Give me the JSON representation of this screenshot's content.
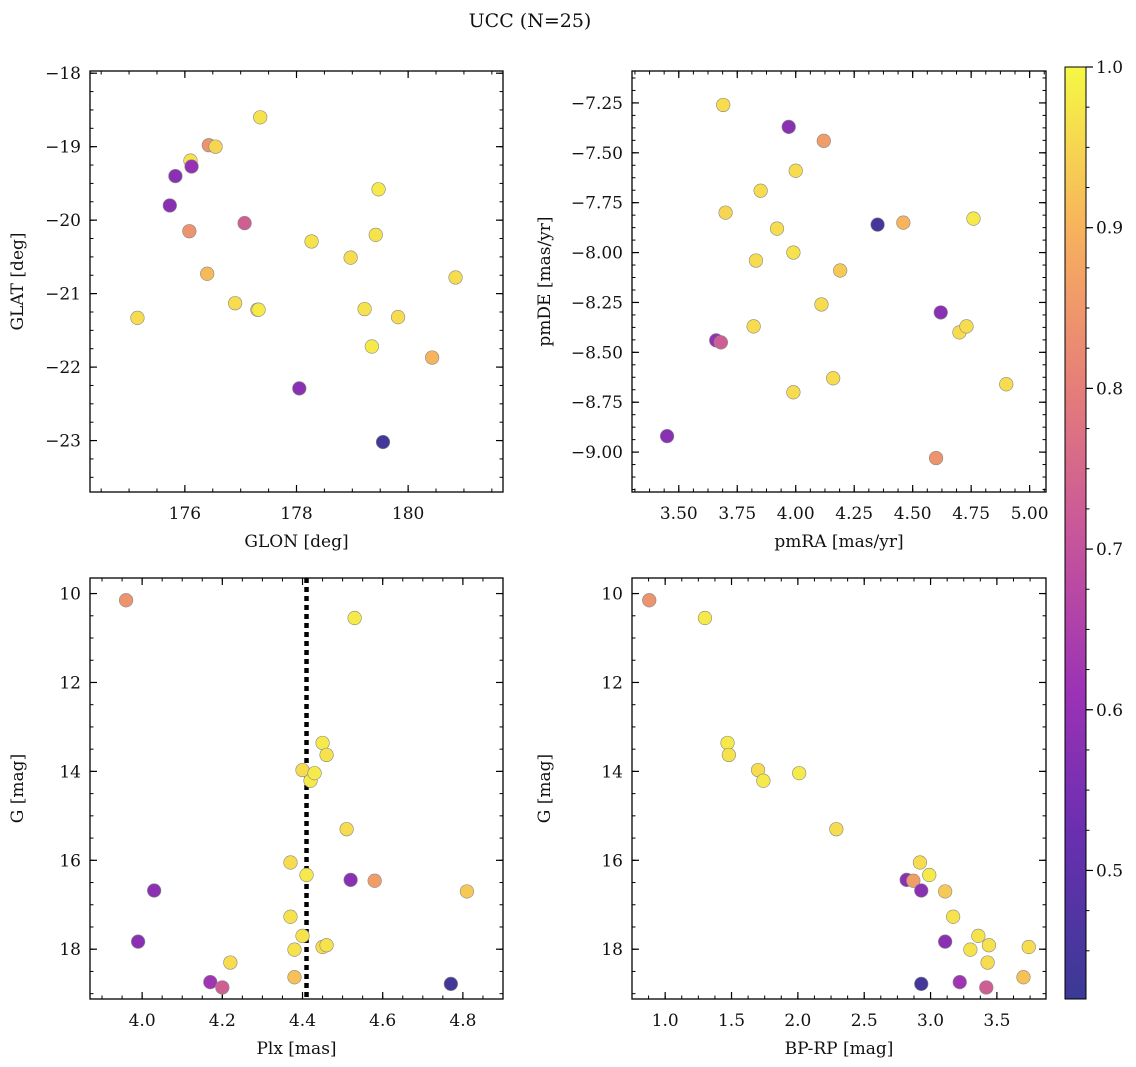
{
  "figure": {
    "title": "UCC (N=25)",
    "colorbar": {
      "range": [
        0.42,
        1.0
      ],
      "ticks": [
        0.5,
        0.6,
        0.7,
        0.8,
        0.9,
        1.0
      ],
      "tick_labels": [
        "0.5",
        "0.6",
        "0.7",
        "0.8",
        "0.9",
        "1.0"
      ],
      "colormap": "plasma"
    }
  },
  "chart_data": [
    {
      "type": "scatter",
      "id": "glon-glat",
      "xlabel": "GLON [deg]",
      "ylabel": "GLAT [deg]",
      "xlim": [
        174.3,
        181.7
      ],
      "ylim": [
        -23.7,
        -17.97
      ],
      "y_inverted": false,
      "xticks": [
        176,
        178,
        180
      ],
      "xtick_labels": [
        "176",
        "178",
        "180"
      ],
      "yticks": [
        -23,
        -22,
        -21,
        -20,
        -19,
        -18
      ],
      "ytick_labels": [
        "−23",
        "−22",
        "−21",
        "−20",
        "−19",
        "−18"
      ],
      "points": [
        {
          "x": 175.15,
          "y": -21.33,
          "c": 0.96
        },
        {
          "x": 175.73,
          "y": -19.8,
          "c": 0.58
        },
        {
          "x": 175.83,
          "y": -19.4,
          "c": 0.58
        },
        {
          "x": 176.08,
          "y": -20.15,
          "c": 0.84
        },
        {
          "x": 176.1,
          "y": -19.19,
          "c": 0.97
        },
        {
          "x": 176.12,
          "y": -19.27,
          "c": 0.6
        },
        {
          "x": 176.4,
          "y": -20.73,
          "c": 0.91
        },
        {
          "x": 176.43,
          "y": -18.98,
          "c": 0.84
        },
        {
          "x": 176.55,
          "y": -19.0,
          "c": 0.95
        },
        {
          "x": 176.9,
          "y": -21.13,
          "c": 0.96
        },
        {
          "x": 177.07,
          "y": -20.04,
          "c": 0.73
        },
        {
          "x": 177.3,
          "y": -21.22,
          "c": 0.97
        },
        {
          "x": 177.32,
          "y": -21.22,
          "c": 0.98
        },
        {
          "x": 177.35,
          "y": -18.6,
          "c": 0.97
        },
        {
          "x": 178.05,
          "y": -22.29,
          "c": 0.58
        },
        {
          "x": 178.27,
          "y": -20.29,
          "c": 0.97
        },
        {
          "x": 178.97,
          "y": -20.51,
          "c": 0.96
        },
        {
          "x": 179.22,
          "y": -21.21,
          "c": 0.97
        },
        {
          "x": 179.35,
          "y": -21.72,
          "c": 0.98
        },
        {
          "x": 179.42,
          "y": -20.2,
          "c": 0.97
        },
        {
          "x": 179.47,
          "y": -19.58,
          "c": 0.98
        },
        {
          "x": 179.55,
          "y": -23.02,
          "c": 0.44
        },
        {
          "x": 179.82,
          "y": -21.32,
          "c": 0.96
        },
        {
          "x": 180.43,
          "y": -21.87,
          "c": 0.9
        },
        {
          "x": 180.85,
          "y": -20.78,
          "c": 0.96
        }
      ]
    },
    {
      "type": "scatter",
      "id": "pmra-pmde",
      "xlabel": "pmRA [mas/yr]",
      "ylabel": "pmDE [mas/yr]",
      "xlim": [
        3.3,
        5.07
      ],
      "ylim": [
        -9.2,
        -7.09
      ],
      "y_inverted": false,
      "xticks": [
        3.5,
        3.75,
        4.0,
        4.25,
        4.5,
        4.75,
        5.0
      ],
      "xtick_labels": [
        "3.50",
        "3.75",
        "4.00",
        "4.25",
        "4.50",
        "4.75",
        "5.00"
      ],
      "yticks": [
        -9.0,
        -8.75,
        -8.5,
        -8.25,
        -8.0,
        -7.75,
        -7.5,
        -7.25
      ],
      "ytick_labels": [
        "−9.00",
        "−8.75",
        "−8.50",
        "−8.25",
        "−8.00",
        "−7.75",
        "−7.50",
        "−7.25"
      ],
      "points": [
        {
          "x": 3.45,
          "y": -8.92,
          "c": 0.58
        },
        {
          "x": 3.66,
          "y": -8.44,
          "c": 0.6
        },
        {
          "x": 3.68,
          "y": -8.45,
          "c": 0.73
        },
        {
          "x": 3.69,
          "y": -7.26,
          "c": 0.96
        },
        {
          "x": 3.7,
          "y": -7.8,
          "c": 0.95
        },
        {
          "x": 3.82,
          "y": -8.37,
          "c": 0.96
        },
        {
          "x": 3.83,
          "y": -8.04,
          "c": 0.96
        },
        {
          "x": 3.85,
          "y": -7.69,
          "c": 0.96
        },
        {
          "x": 3.92,
          "y": -7.88,
          "c": 0.96
        },
        {
          "x": 3.97,
          "y": -7.37,
          "c": 0.58
        },
        {
          "x": 3.99,
          "y": -8.0,
          "c": 0.97
        },
        {
          "x": 3.99,
          "y": -8.7,
          "c": 0.96
        },
        {
          "x": 4.0,
          "y": -7.59,
          "c": 0.96
        },
        {
          "x": 4.11,
          "y": -8.26,
          "c": 0.96
        },
        {
          "x": 4.12,
          "y": -7.44,
          "c": 0.86
        },
        {
          "x": 4.16,
          "y": -8.63,
          "c": 0.96
        },
        {
          "x": 4.19,
          "y": -8.09,
          "c": 0.93
        },
        {
          "x": 4.35,
          "y": -7.86,
          "c": 0.44
        },
        {
          "x": 4.46,
          "y": -7.85,
          "c": 0.9
        },
        {
          "x": 4.6,
          "y": -9.03,
          "c": 0.84
        },
        {
          "x": 4.62,
          "y": -8.3,
          "c": 0.58
        },
        {
          "x": 4.7,
          "y": -8.4,
          "c": 0.96
        },
        {
          "x": 4.73,
          "y": -8.37,
          "c": 0.96
        },
        {
          "x": 4.76,
          "y": -7.83,
          "c": 0.98
        },
        {
          "x": 4.9,
          "y": -8.66,
          "c": 0.96
        }
      ]
    },
    {
      "type": "scatter",
      "id": "plx-g",
      "xlabel": "Plx [mas]",
      "ylabel": "G [mag]",
      "xlim": [
        3.87,
        4.9
      ],
      "ylim": [
        19.12,
        9.65
      ],
      "y_inverted": true,
      "xticks": [
        4.0,
        4.2,
        4.4,
        4.6,
        4.8
      ],
      "xtick_labels": [
        "4.0",
        "4.2",
        "4.4",
        "4.6",
        "4.8"
      ],
      "yticks": [
        10,
        12,
        14,
        16,
        18
      ],
      "ytick_labels": [
        "10",
        "12",
        "14",
        "16",
        "18"
      ],
      "vline": {
        "x": 4.41,
        "style": "dotted"
      },
      "points": [
        {
          "x": 3.96,
          "y": 10.15,
          "c": 0.84
        },
        {
          "x": 3.99,
          "y": 17.83,
          "c": 0.58
        },
        {
          "x": 4.03,
          "y": 16.68,
          "c": 0.58
        },
        {
          "x": 4.17,
          "y": 18.74,
          "c": 0.62
        },
        {
          "x": 4.2,
          "y": 18.86,
          "c": 0.73
        },
        {
          "x": 4.22,
          "y": 18.3,
          "c": 0.96
        },
        {
          "x": 4.37,
          "y": 16.05,
          "c": 0.96
        },
        {
          "x": 4.37,
          "y": 17.27,
          "c": 0.97
        },
        {
          "x": 4.38,
          "y": 18.01,
          "c": 0.97
        },
        {
          "x": 4.38,
          "y": 18.63,
          "c": 0.92
        },
        {
          "x": 4.4,
          "y": 13.97,
          "c": 0.96
        },
        {
          "x": 4.4,
          "y": 17.7,
          "c": 0.97
        },
        {
          "x": 4.41,
          "y": 16.33,
          "c": 0.98
        },
        {
          "x": 4.42,
          "y": 14.21,
          "c": 0.98
        },
        {
          "x": 4.43,
          "y": 14.04,
          "c": 0.98
        },
        {
          "x": 4.45,
          "y": 13.36,
          "c": 0.98
        },
        {
          "x": 4.45,
          "y": 17.95,
          "c": 0.96
        },
        {
          "x": 4.46,
          "y": 13.63,
          "c": 0.97
        },
        {
          "x": 4.46,
          "y": 17.91,
          "c": 0.97
        },
        {
          "x": 4.51,
          "y": 15.3,
          "c": 0.96
        },
        {
          "x": 4.52,
          "y": 16.44,
          "c": 0.58
        },
        {
          "x": 4.53,
          "y": 10.55,
          "c": 0.98
        },
        {
          "x": 4.58,
          "y": 16.46,
          "c": 0.86
        },
        {
          "x": 4.77,
          "y": 18.78,
          "c": 0.44
        },
        {
          "x": 4.81,
          "y": 16.7,
          "c": 0.93
        }
      ]
    },
    {
      "type": "scatter",
      "id": "bprp-g",
      "xlabel": "BP-RP [mag]",
      "ylabel": "G [mag]",
      "xlim": [
        0.75,
        3.87
      ],
      "ylim": [
        19.12,
        9.65
      ],
      "y_inverted": true,
      "xticks": [
        1.0,
        1.5,
        2.0,
        2.5,
        3.0,
        3.5
      ],
      "xtick_labels": [
        "1.0",
        "1.5",
        "2.0",
        "2.5",
        "3.0",
        "3.5"
      ],
      "yticks": [
        10,
        12,
        14,
        16,
        18
      ],
      "ytick_labels": [
        "10",
        "12",
        "14",
        "16",
        "18"
      ],
      "points": [
        {
          "x": 0.88,
          "y": 10.15,
          "c": 0.84
        },
        {
          "x": 1.3,
          "y": 10.55,
          "c": 0.98
        },
        {
          "x": 1.47,
          "y": 13.36,
          "c": 0.98
        },
        {
          "x": 1.48,
          "y": 13.63,
          "c": 0.97
        },
        {
          "x": 1.7,
          "y": 13.97,
          "c": 0.96
        },
        {
          "x": 1.74,
          "y": 14.21,
          "c": 0.98
        },
        {
          "x": 2.01,
          "y": 14.04,
          "c": 0.98
        },
        {
          "x": 2.29,
          "y": 15.3,
          "c": 0.96
        },
        {
          "x": 2.82,
          "y": 16.44,
          "c": 0.58
        },
        {
          "x": 2.87,
          "y": 16.46,
          "c": 0.86
        },
        {
          "x": 2.92,
          "y": 16.05,
          "c": 0.96
        },
        {
          "x": 2.93,
          "y": 16.68,
          "c": 0.58
        },
        {
          "x": 2.93,
          "y": 18.78,
          "c": 0.44
        },
        {
          "x": 2.99,
          "y": 16.33,
          "c": 0.98
        },
        {
          "x": 3.11,
          "y": 16.7,
          "c": 0.93
        },
        {
          "x": 3.11,
          "y": 17.83,
          "c": 0.58
        },
        {
          "x": 3.17,
          "y": 17.27,
          "c": 0.97
        },
        {
          "x": 3.22,
          "y": 18.74,
          "c": 0.62
        },
        {
          "x": 3.3,
          "y": 18.01,
          "c": 0.97
        },
        {
          "x": 3.36,
          "y": 17.7,
          "c": 0.97
        },
        {
          "x": 3.42,
          "y": 18.86,
          "c": 0.73
        },
        {
          "x": 3.43,
          "y": 18.3,
          "c": 0.96
        },
        {
          "x": 3.44,
          "y": 17.91,
          "c": 0.97
        },
        {
          "x": 3.7,
          "y": 18.63,
          "c": 0.92
        },
        {
          "x": 3.74,
          "y": 17.95,
          "c": 0.96
        }
      ]
    }
  ]
}
